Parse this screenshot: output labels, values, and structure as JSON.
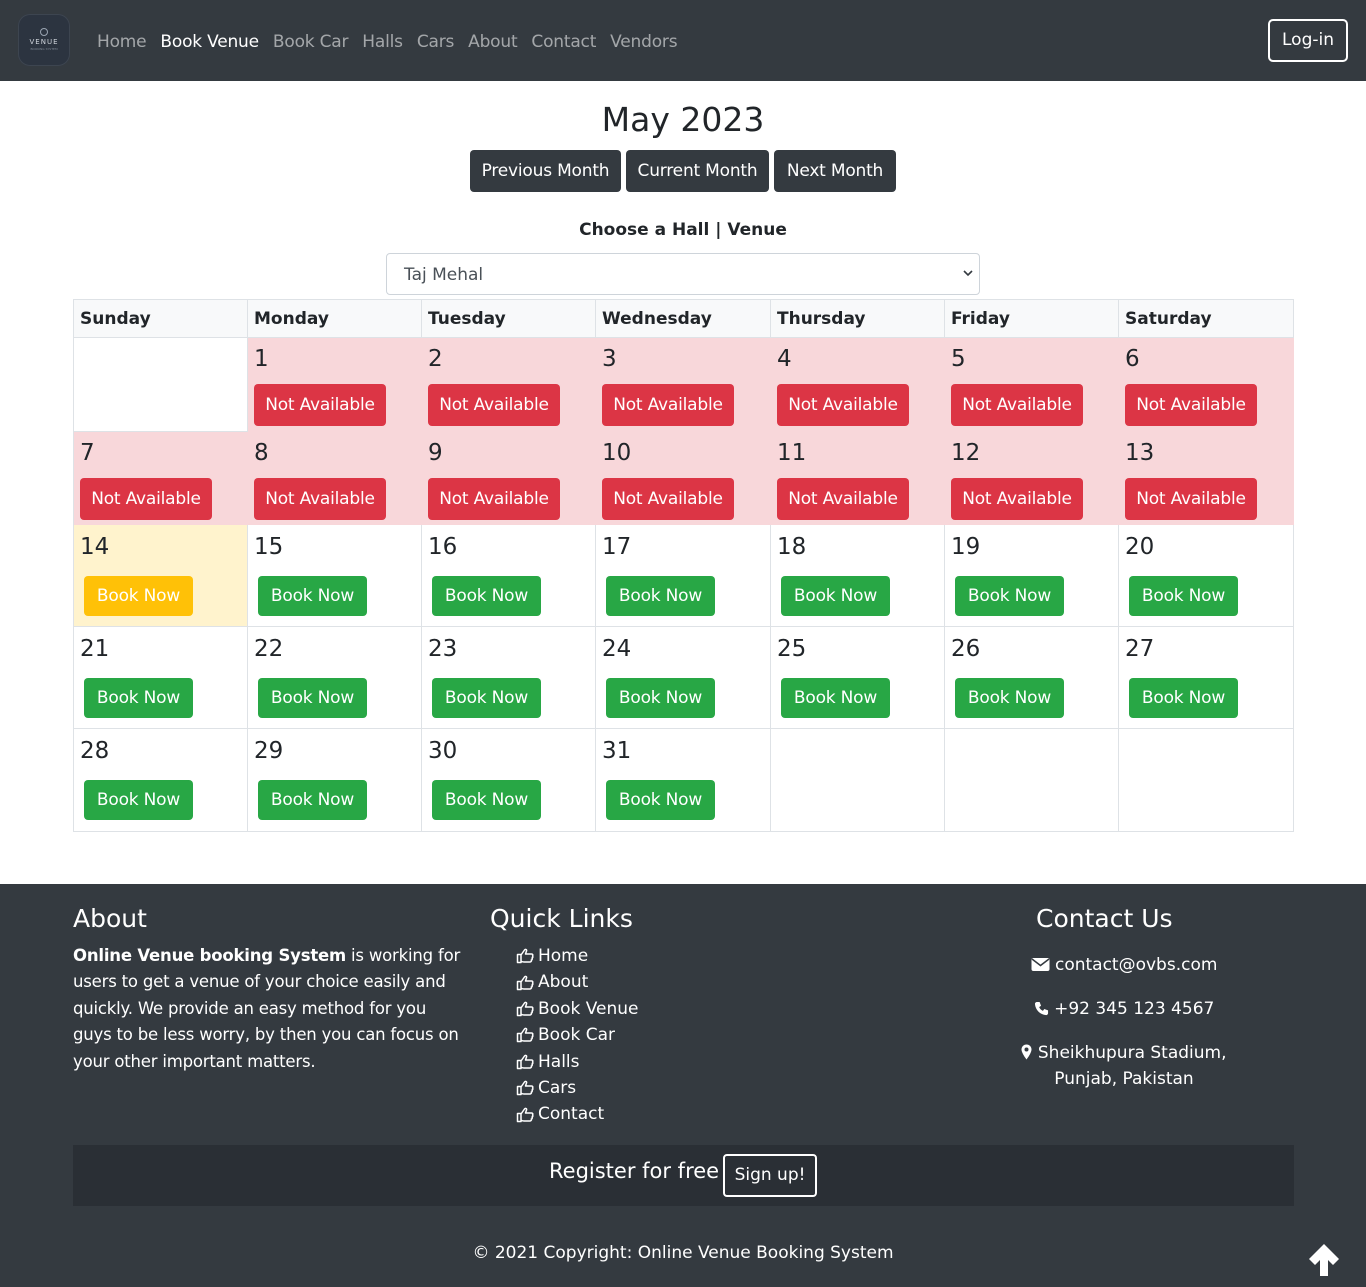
{
  "navbar": {
    "logo_text": "VENUE",
    "logo_sub": "BOOKING SYSTEM",
    "links": [
      "Home",
      "Book Venue",
      "Book Car",
      "Halls",
      "Cars",
      "About",
      "Contact",
      "Vendors"
    ],
    "active_link": "Book Venue",
    "login_label": "Log-in"
  },
  "calendar": {
    "month_title": "May 2023",
    "prev_label": "Previous Month",
    "current_label": "Current Month",
    "next_label": "Next Month",
    "choose_label": "Choose a Hall | Venue",
    "selected_hall": "Taj Mehal",
    "weekdays": [
      "Sunday",
      "Monday",
      "Tuesday",
      "Wednesday",
      "Thursday",
      "Friday",
      "Saturday"
    ],
    "not_available_label": "Not Available",
    "book_label": "Book Now",
    "first_weekday_index": 1,
    "days_in_month": 31,
    "today": 14,
    "unavailable_days": [
      1,
      2,
      3,
      4,
      5,
      6,
      7,
      8,
      9,
      10,
      11,
      12,
      13
    ]
  },
  "footer": {
    "about_title": "About",
    "about_bold": "Online Venue booking System",
    "about_text": " is working for users to get a venue of your choice easily and quickly. We provide an easy method for you guys to be less worry, by then you can focus on your other important matters.",
    "quick_links_title": "Quick Links",
    "quick_links": [
      "Home",
      "About",
      "Book Venue",
      "Book Car",
      "Halls",
      "Cars",
      "Contact"
    ],
    "contact_title": "Contact Us",
    "email": "contact@ovbs.com",
    "phone": "+92 345 123 4567",
    "address": "Sheikhupura Stadium, Punjab, Pakistan",
    "register_text": "Register for free",
    "signup_label": "Sign up!",
    "copyright": "© 2021 Copyright: Online Venue Booking System"
  },
  "colors": {
    "navbar": "#343a40",
    "danger": "#dc3545",
    "success": "#28a745",
    "warning": "#ffc107",
    "unavailable_bg": "#f8d7da",
    "today_bg": "#fff3cd"
  },
  "icons": [
    "thumbs-up-icon",
    "envelope-icon",
    "phone-icon",
    "map-marker-icon",
    "arrow-up-icon",
    "chevron-down-icon"
  ]
}
